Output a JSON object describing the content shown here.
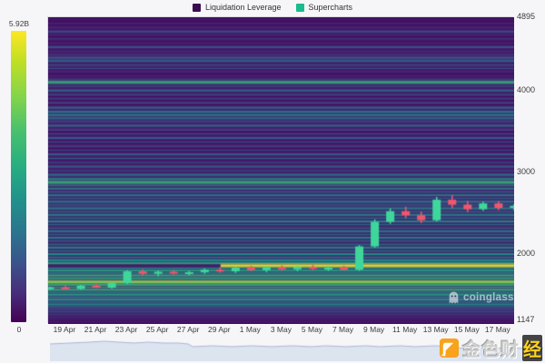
{
  "legend": {
    "items": [
      {
        "label": "Liquidation Leverage",
        "color": "#3a0d4f"
      },
      {
        "label": "Supercharts",
        "color": "#1abc8c"
      }
    ]
  },
  "colorbar": {
    "max_label": "5.92B",
    "min_label": "0"
  },
  "watermarks": {
    "coinglass_label": "coinglass",
    "jinse_main": "金色财",
    "jinse_last": "经"
  },
  "chart_data": {
    "type": "heatmap",
    "title": "Liquidation Leverage heatmap with price candlesticks",
    "colorbar": {
      "min": 0,
      "max": "5.92B"
    },
    "y_axis": {
      "min": 1147,
      "max": 4895,
      "ticks": [
        4895,
        4000,
        3000,
        2000,
        1147
      ]
    },
    "x_axis": {
      "labels": [
        "19 Apr",
        "21 Apr",
        "23 Apr",
        "25 Apr",
        "27 Apr",
        "29 Apr",
        "1 May",
        "3 May",
        "5 May",
        "7 May",
        "9 May",
        "11 May",
        "13 May",
        "15 May",
        "17 May"
      ],
      "first_center_frac": 0.037,
      "step_frac": 0.0664
    },
    "background": "#480a60",
    "heatmap_rows": [
      [
        4870,
        0.1,
        1
      ],
      [
        4820,
        0.14,
        1
      ],
      [
        4770,
        0.18,
        1
      ],
      [
        4720,
        0.24,
        2
      ],
      [
        4680,
        0.16,
        1
      ],
      [
        4630,
        0.2,
        1
      ],
      [
        4580,
        0.14,
        1
      ],
      [
        4530,
        0.26,
        2
      ],
      [
        4480,
        0.18,
        1
      ],
      [
        4440,
        0.22,
        1
      ],
      [
        4400,
        0.3,
        2
      ],
      [
        4360,
        0.34,
        2
      ],
      [
        4310,
        0.3,
        1
      ],
      [
        4270,
        0.26,
        1
      ],
      [
        4230,
        0.18,
        1
      ],
      [
        4180,
        0.14,
        1
      ],
      [
        4140,
        0.22,
        1
      ],
      [
        4100,
        0.58,
        3
      ],
      [
        4050,
        0.26,
        1
      ],
      [
        4000,
        0.34,
        2
      ],
      [
        3950,
        0.3,
        1
      ],
      [
        3900,
        0.24,
        1
      ],
      [
        3850,
        0.28,
        1
      ],
      [
        3790,
        0.34,
        2
      ],
      [
        3740,
        0.4,
        2
      ],
      [
        3700,
        0.42,
        2
      ],
      [
        3660,
        0.36,
        2
      ],
      [
        3620,
        0.3,
        1
      ],
      [
        3570,
        0.34,
        2
      ],
      [
        3520,
        0.28,
        1
      ],
      [
        3470,
        0.24,
        1
      ],
      [
        3420,
        0.3,
        2
      ],
      [
        3370,
        0.24,
        1
      ],
      [
        3320,
        0.28,
        1
      ],
      [
        3270,
        0.22,
        1
      ],
      [
        3220,
        0.3,
        2
      ],
      [
        3170,
        0.34,
        1
      ],
      [
        3120,
        0.26,
        1
      ],
      [
        3070,
        0.3,
        2
      ],
      [
        3020,
        0.26,
        1
      ],
      [
        2970,
        0.38,
        2
      ],
      [
        2920,
        0.44,
        2
      ],
      [
        2877,
        0.6,
        3
      ],
      [
        2840,
        0.44,
        1
      ],
      [
        2800,
        0.38,
        2
      ],
      [
        2760,
        0.34,
        1
      ],
      [
        2720,
        0.4,
        2
      ],
      [
        2680,
        0.34,
        1
      ],
      [
        2640,
        0.4,
        2
      ],
      [
        2600,
        0.36,
        1
      ],
      [
        2560,
        0.42,
        2
      ],
      [
        2520,
        0.36,
        1
      ],
      [
        2480,
        0.44,
        2
      ],
      [
        2440,
        0.38,
        1
      ],
      [
        2400,
        0.44,
        2
      ],
      [
        2360,
        0.38,
        1
      ],
      [
        2320,
        0.34,
        1
      ],
      [
        2280,
        0.4,
        2
      ],
      [
        2240,
        0.34,
        1
      ],
      [
        2200,
        0.42,
        2
      ],
      [
        2160,
        0.36,
        1
      ],
      [
        2120,
        0.4,
        1
      ],
      [
        2080,
        0.44,
        2
      ],
      [
        2040,
        0.38,
        1
      ],
      [
        2000,
        0.5,
        2
      ],
      [
        1960,
        0.44,
        1
      ],
      [
        1925,
        0.5,
        2
      ],
      [
        1890,
        0.55,
        2
      ],
      [
        1857,
        0.97,
        3,
        0.37
      ],
      [
        1830,
        0.5,
        1
      ],
      [
        1800,
        0.55,
        2
      ],
      [
        1770,
        0.5,
        1
      ],
      [
        1740,
        0.6,
        2
      ],
      [
        1705,
        0.55,
        2
      ],
      [
        1660,
        0.82,
        3
      ],
      [
        1625,
        0.6,
        2
      ],
      [
        1595,
        0.55,
        1
      ],
      [
        1565,
        0.6,
        2
      ],
      [
        1535,
        0.5,
        1
      ],
      [
        1505,
        0.55,
        2
      ],
      [
        1475,
        0.46,
        1
      ],
      [
        1445,
        0.52,
        2
      ],
      [
        1415,
        0.4,
        1
      ],
      [
        1385,
        0.46,
        2
      ],
      [
        1355,
        0.36,
        1
      ],
      [
        1325,
        0.3,
        1
      ],
      [
        1295,
        0.26,
        1
      ],
      [
        1265,
        0.2,
        1
      ],
      [
        1235,
        0.16,
        1
      ],
      [
        1205,
        0.12,
        1
      ],
      [
        1175,
        0.1,
        1
      ]
    ],
    "candles": {
      "note": "daily OHLC, 18 Apr - 18 May",
      "up_color": "#3fd69b",
      "down_color": "#f0566e",
      "ohlc": [
        [
          1580,
          1605,
          1560,
          1595
        ],
        [
          1595,
          1615,
          1570,
          1575
        ],
        [
          1575,
          1625,
          1565,
          1615
        ],
        [
          1615,
          1635,
          1585,
          1590
        ],
        [
          1590,
          1655,
          1580,
          1645
        ],
        [
          1645,
          1805,
          1635,
          1790
        ],
        [
          1790,
          1815,
          1745,
          1760
        ],
        [
          1760,
          1800,
          1730,
          1785
        ],
        [
          1785,
          1805,
          1750,
          1765
        ],
        [
          1765,
          1795,
          1740,
          1780
        ],
        [
          1780,
          1825,
          1760,
          1810
        ],
        [
          1810,
          1840,
          1775,
          1790
        ],
        [
          1790,
          1845,
          1770,
          1835
        ],
        [
          1835,
          1860,
          1795,
          1805
        ],
        [
          1805,
          1850,
          1780,
          1840
        ],
        [
          1840,
          1865,
          1800,
          1815
        ],
        [
          1815,
          1855,
          1790,
          1845
        ],
        [
          1845,
          1870,
          1805,
          1820
        ],
        [
          1820,
          1855,
          1795,
          1835
        ],
        [
          1835,
          1860,
          1800,
          1810
        ],
        [
          1810,
          2110,
          1795,
          2095
        ],
        [
          2095,
          2425,
          2080,
          2395
        ],
        [
          2395,
          2560,
          2370,
          2525
        ],
        [
          2525,
          2580,
          2440,
          2475
        ],
        [
          2475,
          2520,
          2380,
          2415
        ],
        [
          2415,
          2700,
          2400,
          2665
        ],
        [
          2665,
          2720,
          2560,
          2605
        ],
        [
          2605,
          2650,
          2515,
          2550
        ],
        [
          2550,
          2640,
          2530,
          2620
        ],
        [
          2620,
          2650,
          2540,
          2565
        ],
        [
          2565,
          2610,
          2535,
          2590
        ]
      ]
    },
    "navigator": {
      "fill": "#dce4f0",
      "line": "#a7b7d2",
      "points": [
        [
          0,
          8
        ],
        [
          0.04,
          7
        ],
        [
          0.08,
          6
        ],
        [
          0.11,
          5
        ],
        [
          0.14,
          6
        ],
        [
          0.17,
          7
        ],
        [
          0.2,
          6
        ],
        [
          0.23,
          7
        ],
        [
          0.26,
          7
        ],
        [
          0.28,
          8
        ],
        [
          0.29,
          11
        ],
        [
          0.33,
          10
        ],
        [
          0.37,
          11
        ],
        [
          0.41,
          10
        ],
        [
          0.45,
          11
        ],
        [
          0.49,
          10
        ],
        [
          0.53,
          11
        ],
        [
          0.56,
          10
        ],
        [
          0.6,
          11
        ],
        [
          0.64,
          10
        ],
        [
          0.67,
          11
        ],
        [
          0.71,
          10
        ],
        [
          0.74,
          11
        ],
        [
          0.78,
          10
        ],
        [
          0.81,
          11
        ],
        [
          0.84,
          13
        ],
        [
          0.87,
          12
        ],
        [
          0.9,
          13
        ],
        [
          0.93,
          12
        ],
        [
          0.96,
          13
        ],
        [
          1,
          12
        ]
      ]
    }
  }
}
